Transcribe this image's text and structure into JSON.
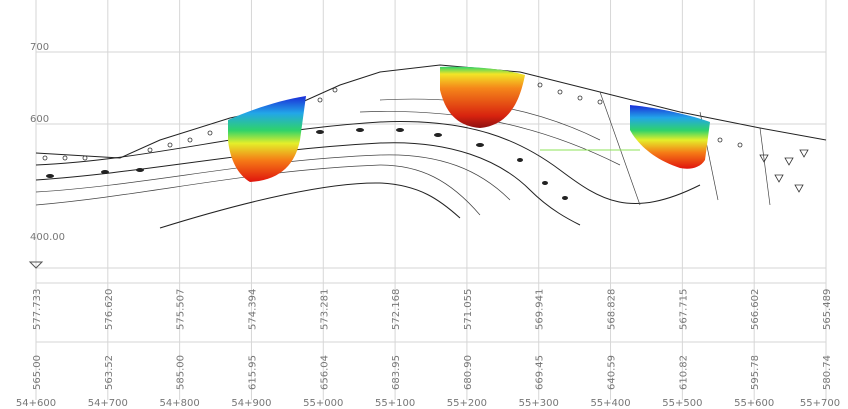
{
  "elevation_labels": [
    "700",
    "600",
    "400.00"
  ],
  "rows": {
    "top": [
      "577.733",
      "576.620",
      "575.507",
      "574.394",
      "573.281",
      "572.168",
      "571.055",
      "569.941",
      "568.828",
      "567.715",
      "566.602",
      "565.489"
    ],
    "ground": [
      "565.00",
      "563.52",
      "585.00",
      "615.95",
      "656.04",
      "683.95",
      "680.90",
      "669.45",
      "640.59",
      "610.82",
      "595.78",
      "580.74"
    ],
    "chainage": [
      "54+600",
      "54+700",
      "54+800",
      "54+900",
      "55+000",
      "55+100",
      "55+200",
      "55+300",
      "55+400",
      "55+500",
      "55+600",
      "55+700"
    ]
  }
}
